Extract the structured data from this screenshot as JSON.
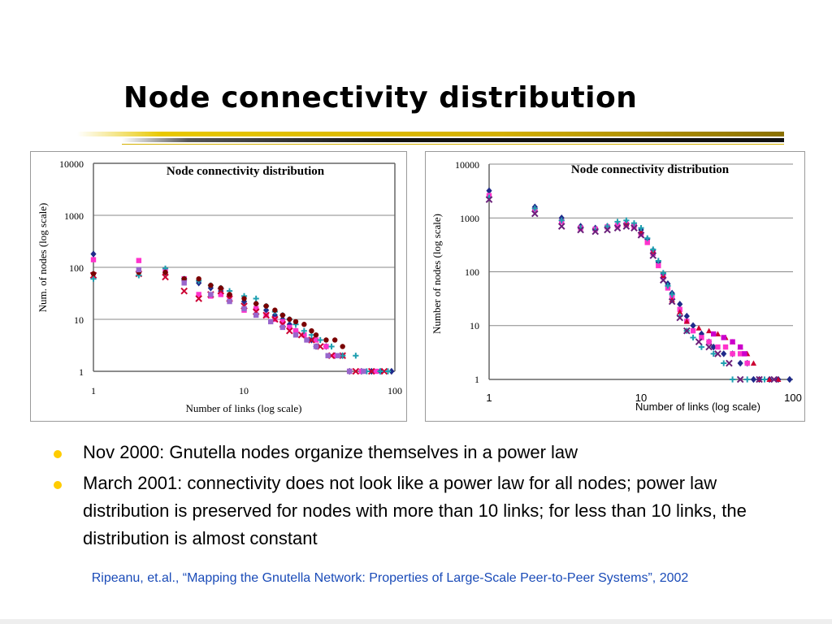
{
  "slide": {
    "title": "Node connectivity distribution",
    "bullets": [
      "Nov 2000: Gnutella nodes organize themselves in a power law",
      "March 2001: connectivity does not look like a power law for all nodes; power law distribution is preserved for nodes with more than 10 links; for less than 10 links, the distribution is almost constant"
    ],
    "citation": "Ripeanu, et.al., “Mapping the Gnutella Network: Properties of Large-Scale Peer-to-Peer Systems”, 2002",
    "colors": {
      "bullet": "#ffcc00",
      "citation": "#1a4bb8",
      "rule_gold": "#d4b000",
      "rule_black": "#111111"
    }
  },
  "chart_data": [
    {
      "type": "scatter",
      "title": "Node connectivity distribution",
      "xlabel": "Number of links (log scale)",
      "ylabel": "Num. of nodes (log scale)",
      "x_scale": "log",
      "y_scale": "log",
      "xlim": [
        1,
        100
      ],
      "ylim": [
        1,
        10000
      ],
      "x_ticks": [
        "1",
        "10",
        "100"
      ],
      "y_ticks": [
        "1",
        "10",
        "100",
        "1000",
        "10000"
      ],
      "grid": "horizontal",
      "series": [
        {
          "color": "#1f2a8a",
          "marker": "diamond",
          "points": [
            [
              1,
              180
            ],
            [
              2,
              80
            ],
            [
              3,
              80
            ],
            [
              4,
              55
            ],
            [
              5,
              50
            ],
            [
              6,
              40
            ],
            [
              7,
              35
            ],
            [
              8,
              30
            ],
            [
              10,
              22
            ],
            [
              12,
              20
            ],
            [
              14,
              15
            ],
            [
              16,
              12
            ],
            [
              18,
              10
            ],
            [
              20,
              8
            ],
            [
              22,
              6
            ],
            [
              25,
              5
            ],
            [
              28,
              4
            ],
            [
              30,
              3
            ],
            [
              35,
              3
            ],
            [
              40,
              2
            ],
            [
              45,
              2
            ],
            [
              50,
              1
            ],
            [
              60,
              1
            ],
            [
              70,
              1
            ],
            [
              80,
              1
            ],
            [
              95,
              1
            ]
          ]
        },
        {
          "color": "#ff33cc",
          "marker": "square",
          "points": [
            [
              1,
              140
            ],
            [
              2,
              135
            ],
            [
              3,
              85
            ],
            [
              4,
              60
            ],
            [
              5,
              30
            ],
            [
              6,
              28
            ],
            [
              7,
              30
            ],
            [
              8,
              28
            ],
            [
              10,
              15
            ],
            [
              12,
              16
            ],
            [
              14,
              12
            ],
            [
              16,
              10
            ],
            [
              18,
              9
            ],
            [
              20,
              7
            ],
            [
              22,
              6
            ],
            [
              25,
              5
            ],
            [
              30,
              4
            ],
            [
              35,
              3
            ],
            [
              40,
              2
            ],
            [
              50,
              1
            ],
            [
              60,
              1
            ],
            [
              75,
              1
            ]
          ]
        },
        {
          "color": "#cc0033",
          "marker": "x",
          "points": [
            [
              1,
              70
            ],
            [
              2,
              75
            ],
            [
              3,
              65
            ],
            [
              4,
              35
            ],
            [
              5,
              25
            ],
            [
              6,
              30
            ],
            [
              7,
              35
            ],
            [
              8,
              25
            ],
            [
              10,
              18
            ],
            [
              12,
              14
            ],
            [
              14,
              12
            ],
            [
              16,
              10
            ],
            [
              18,
              8
            ],
            [
              20,
              6
            ],
            [
              24,
              5
            ],
            [
              28,
              4
            ],
            [
              32,
              3
            ],
            [
              38,
              2
            ],
            [
              45,
              2
            ],
            [
              55,
              1
            ],
            [
              70,
              1
            ],
            [
              85,
              1
            ]
          ]
        },
        {
          "color": "#1f9fb0",
          "marker": "plus",
          "points": [
            [
              1,
              60
            ],
            [
              2,
              70
            ],
            [
              3,
              95
            ],
            [
              4,
              60
            ],
            [
              5,
              55
            ],
            [
              6,
              45
            ],
            [
              7,
              40
            ],
            [
              8,
              35
            ],
            [
              10,
              28
            ],
            [
              12,
              25
            ],
            [
              14,
              18
            ],
            [
              16,
              14
            ],
            [
              18,
              12
            ],
            [
              20,
              10
            ],
            [
              22,
              8
            ],
            [
              25,
              6
            ],
            [
              28,
              5
            ],
            [
              32,
              4
            ],
            [
              38,
              3
            ],
            [
              45,
              2
            ],
            [
              55,
              2
            ],
            [
              65,
              1
            ],
            [
              80,
              1
            ],
            [
              90,
              1
            ]
          ]
        },
        {
          "color": "#7a0000",
          "marker": "circle",
          "points": [
            [
              1,
              75
            ],
            [
              2,
              80
            ],
            [
              3,
              80
            ],
            [
              4,
              60
            ],
            [
              5,
              60
            ],
            [
              6,
              45
            ],
            [
              7,
              40
            ],
            [
              8,
              30
            ],
            [
              10,
              25
            ],
            [
              12,
              20
            ],
            [
              14,
              18
            ],
            [
              16,
              15
            ],
            [
              18,
              12
            ],
            [
              20,
              10
            ],
            [
              22,
              9
            ],
            [
              25,
              8
            ],
            [
              28,
              6
            ],
            [
              30,
              5
            ],
            [
              35,
              4
            ],
            [
              40,
              4
            ],
            [
              45,
              3
            ]
          ]
        },
        {
          "color": "#9966cc",
          "marker": "square",
          "points": [
            [
              2,
              90
            ],
            [
              4,
              50
            ],
            [
              6,
              30
            ],
            [
              8,
              22
            ],
            [
              10,
              16
            ],
            [
              12,
              12
            ],
            [
              15,
              9
            ],
            [
              18,
              7
            ],
            [
              22,
              5
            ],
            [
              26,
              4
            ],
            [
              30,
              3
            ],
            [
              36,
              2
            ],
            [
              42,
              2
            ],
            [
              50,
              1
            ],
            [
              62,
              1
            ]
          ]
        }
      ]
    },
    {
      "type": "scatter",
      "title": "Node connectivity distribution",
      "xlabel": "Number of links (log scale)",
      "ylabel": "Number of nodes (log scale)",
      "x_scale": "log",
      "y_scale": "log",
      "xlim": [
        1,
        100
      ],
      "ylim": [
        1,
        10000
      ],
      "x_ticks": [
        "1",
        "10",
        "100"
      ],
      "y_ticks": [
        "1",
        "10",
        "100",
        "1000",
        "10000"
      ],
      "grid": "horizontal",
      "series": [
        {
          "color": "#1f2a8a",
          "marker": "diamond",
          "points": [
            [
              1,
              3200
            ],
            [
              2,
              1600
            ],
            [
              3,
              1000
            ],
            [
              4,
              700
            ],
            [
              5,
              650
            ],
            [
              6,
              700
            ],
            [
              7,
              750
            ],
            [
              8,
              800
            ],
            [
              9,
              750
            ],
            [
              10,
              600
            ],
            [
              11,
              400
            ],
            [
              12,
              250
            ],
            [
              13,
              150
            ],
            [
              14,
              90
            ],
            [
              15,
              60
            ],
            [
              16,
              40
            ],
            [
              18,
              25
            ],
            [
              20,
              15
            ],
            [
              22,
              10
            ],
            [
              25,
              7
            ],
            [
              28,
              5
            ],
            [
              30,
              4
            ],
            [
              35,
              3
            ],
            [
              40,
              3
            ],
            [
              45,
              2
            ],
            [
              50,
              2
            ],
            [
              55,
              1
            ],
            [
              60,
              1
            ],
            [
              70,
              1
            ],
            [
              80,
              1
            ],
            [
              95,
              1
            ]
          ]
        },
        {
          "color": "#ff33cc",
          "marker": "square",
          "points": [
            [
              1,
              2600
            ],
            [
              2,
              1400
            ],
            [
              3,
              850
            ],
            [
              4,
              650
            ],
            [
              5,
              620
            ],
            [
              6,
              680
            ],
            [
              7,
              720
            ],
            [
              8,
              760
            ],
            [
              9,
              700
            ],
            [
              10,
              500
            ],
            [
              11,
              350
            ],
            [
              12,
              220
            ],
            [
              13,
              130
            ],
            [
              14,
              80
            ],
            [
              15,
              50
            ],
            [
              16,
              35
            ],
            [
              18,
              20
            ],
            [
              20,
              12
            ],
            [
              22,
              8
            ],
            [
              25,
              6
            ],
            [
              28,
              5
            ],
            [
              32,
              4
            ],
            [
              36,
              4
            ],
            [
              40,
              3
            ],
            [
              45,
              3
            ],
            [
              50,
              2
            ]
          ]
        },
        {
          "color": "#cc0033",
          "marker": "triangle",
          "points": [
            [
              8,
              780
            ],
            [
              10,
              550
            ],
            [
              12,
              240
            ],
            [
              14,
              85
            ],
            [
              16,
              30
            ],
            [
              18,
              18
            ],
            [
              20,
              12
            ],
            [
              24,
              9
            ],
            [
              28,
              8
            ],
            [
              32,
              7
            ],
            [
              36,
              6
            ],
            [
              40,
              5
            ],
            [
              45,
              4
            ],
            [
              50,
              3
            ],
            [
              55,
              2
            ],
            [
              60,
              1
            ],
            [
              70,
              1
            ],
            [
              80,
              1
            ]
          ]
        },
        {
          "color": "#1f9fb0",
          "marker": "plus",
          "points": [
            [
              1,
              2400
            ],
            [
              2,
              1500
            ],
            [
              3,
              900
            ],
            [
              4,
              650
            ],
            [
              5,
              600
            ],
            [
              6,
              700
            ],
            [
              7,
              850
            ],
            [
              8,
              900
            ],
            [
              9,
              800
            ],
            [
              10,
              650
            ],
            [
              11,
              420
            ],
            [
              12,
              260
            ],
            [
              13,
              160
            ],
            [
              14,
              95
            ],
            [
              15,
              55
            ],
            [
              16,
              38
            ],
            [
              18,
              15
            ],
            [
              20,
              8
            ],
            [
              22,
              6
            ],
            [
              25,
              4
            ],
            [
              30,
              3
            ],
            [
              35,
              2
            ],
            [
              40,
              1
            ],
            [
              50,
              1
            ],
            [
              65,
              1
            ]
          ]
        },
        {
          "color": "#6a1f7a",
          "marker": "x",
          "points": [
            [
              1,
              2200
            ],
            [
              2,
              1200
            ],
            [
              3,
              700
            ],
            [
              4,
              600
            ],
            [
              5,
              560
            ],
            [
              6,
              600
            ],
            [
              7,
              650
            ],
            [
              8,
              700
            ],
            [
              9,
              650
            ],
            [
              10,
              480
            ],
            [
              12,
              200
            ],
            [
              14,
              70
            ],
            [
              16,
              28
            ],
            [
              18,
              14
            ],
            [
              20,
              8
            ],
            [
              24,
              5
            ],
            [
              28,
              4
            ],
            [
              32,
              3
            ],
            [
              38,
              2
            ],
            [
              45,
              1
            ],
            [
              60,
              1
            ],
            [
              75,
              1
            ]
          ]
        },
        {
          "color": "#cc00cc",
          "marker": "square",
          "points": [
            [
              30,
              7
            ],
            [
              35,
              6
            ],
            [
              40,
              5
            ],
            [
              45,
              4
            ],
            [
              48,
              3
            ]
          ]
        }
      ]
    }
  ]
}
